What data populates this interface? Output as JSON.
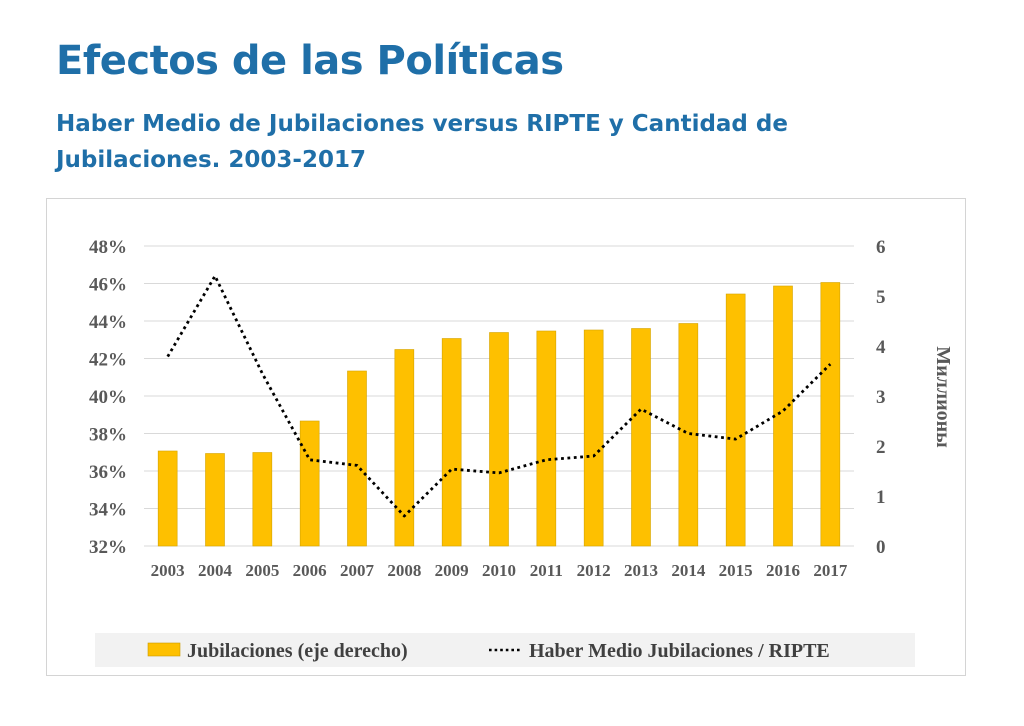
{
  "header": {
    "title": "Efectos de las Políticas",
    "subtitle": "Haber Medio de Jubilaciones versus RIPTE y Cantidad de Jubilaciones. 2003-2017"
  },
  "chart_data": {
    "type": "bar",
    "title": "",
    "categories": [
      "2003",
      "2004",
      "2005",
      "2006",
      "2007",
      "2008",
      "2009",
      "2010",
      "2011",
      "2012",
      "2013",
      "2014",
      "2015",
      "2016",
      "2017"
    ],
    "y_left": {
      "ylim": [
        32,
        48
      ],
      "ticks": [
        32,
        34,
        36,
        38,
        40,
        42,
        44,
        46,
        48
      ],
      "tick_labels": [
        "32%",
        "34%",
        "36%",
        "38%",
        "40%",
        "42%",
        "44%",
        "46%",
        "48%"
      ]
    },
    "y_right": {
      "ylabel": "Миллионы",
      "ylim": [
        0,
        6
      ],
      "ticks": [
        0,
        1,
        2,
        3,
        4,
        5,
        6
      ],
      "tick_labels": [
        "0",
        "1",
        "2",
        "3",
        "4",
        "5",
        "6"
      ]
    },
    "series": [
      {
        "name": "Jubilaciones (eje derecho)",
        "kind": "bar",
        "axis": "right",
        "color": "#fec000",
        "values": [
          1.9,
          1.85,
          1.87,
          2.5,
          3.5,
          3.93,
          4.15,
          4.27,
          4.3,
          4.32,
          4.35,
          4.45,
          5.04,
          5.2,
          5.27
        ]
      },
      {
        "name": "Haber Medio Jubilaciones / RIPTE",
        "kind": "line",
        "style": "dotted",
        "axis": "left",
        "color": "#000000",
        "values": [
          42.1,
          46.4,
          41.2,
          36.6,
          36.3,
          33.6,
          36.1,
          35.9,
          36.6,
          36.8,
          39.3,
          38.0,
          37.7,
          39.2,
          41.7
        ]
      }
    ],
    "grid": true,
    "legend": "bottom"
  }
}
